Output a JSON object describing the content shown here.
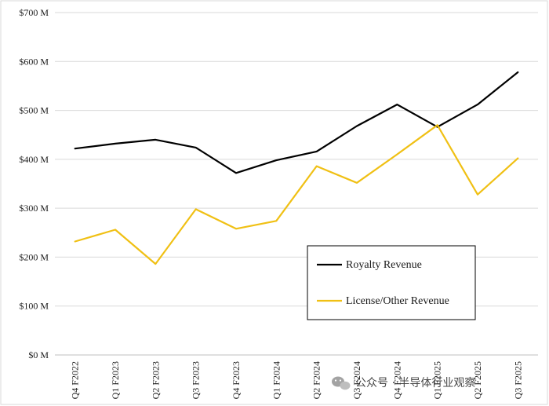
{
  "chart_data": {
    "type": "line",
    "title": "",
    "xlabel": "",
    "ylabel": "",
    "ylim": [
      0,
      700
    ],
    "yticks": [
      0,
      100,
      200,
      300,
      400,
      500,
      600,
      700
    ],
    "ytick_labels": [
      "$0 M",
      "$100 M",
      "$200 M",
      "$300 M",
      "$400 M",
      "$500 M",
      "$600 M",
      "$700 M"
    ],
    "categories": [
      "Q4 F2022",
      "Q1 F2023",
      "Q2 F2023",
      "Q3 F2023",
      "Q4 F2023",
      "Q1 F2024",
      "Q2 F2024",
      "Q3 F2024",
      "Q4 F2024",
      "Q1 F2025",
      "Q2 F2025",
      "Q3 F2025"
    ],
    "grid": true,
    "legend_position": "bottom-right",
    "series": [
      {
        "name": "Royalty Revenue",
        "color": "#000000",
        "values": [
          422,
          432,
          440,
          424,
          372,
          398,
          416,
          468,
          512,
          466,
          512,
          578
        ]
      },
      {
        "name": "License/Other Revenue",
        "color": "#f0c014",
        "values": [
          232,
          256,
          186,
          298,
          258,
          274,
          386,
          352,
          410,
          470,
          328,
          402
        ]
      }
    ]
  },
  "watermark": {
    "icon": "wechat-icon",
    "text": "公众号 · 半导体行业观察"
  }
}
